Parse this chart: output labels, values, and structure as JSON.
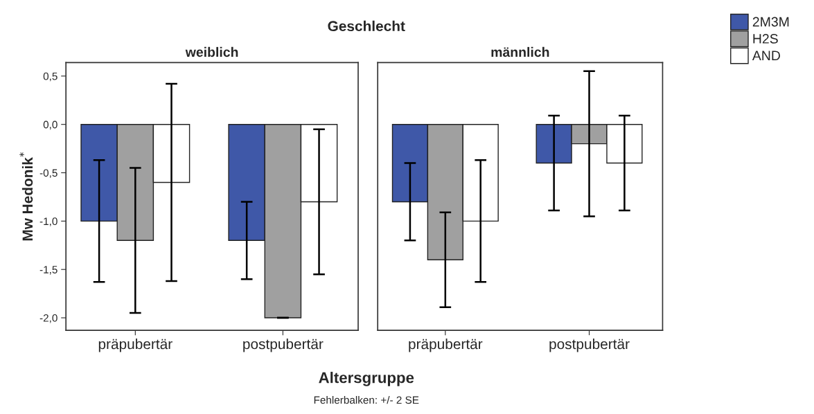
{
  "chart_data": [
    {
      "type": "bar",
      "title": "weiblich",
      "ylabel": "Mw Hedonik$^{*}$",
      "xlabel": "Altersgruppe",
      "annotations": [
        "Geschlecht"
      ],
      "categories": [
        "präpubertär",
        "postpubertär"
      ],
      "series": [
        {
          "name": "2M3M",
          "color": "#3f58a8",
          "values": [
            -1.0,
            -1.2
          ],
          "errors": [
            0.63,
            0.4
          ]
        },
        {
          "name": "H2S",
          "color": "#a0a0a0",
          "values": [
            -1.2,
            -2.0
          ],
          "errors": [
            0.75,
            0
          ]
        },
        {
          "name": "AND",
          "color": "#ffffff",
          "values": [
            -0.6,
            -0.8
          ],
          "errors": [
            1.02,
            0.75
          ]
        }
      ],
      "ylim": [
        -2.13,
        0.64
      ],
      "yticks": [
        {
          "value": -2.0,
          "label": "-2,0"
        },
        {
          "value": -1.5,
          "label": "-1,5"
        },
        {
          "value": -1.0,
          "label": "-1,0"
        },
        {
          "value": -0.5,
          "label": "-0,5"
        },
        {
          "value": 0.0,
          "label": "0,0"
        },
        {
          "value": 0.5,
          "label": "0,5"
        }
      ],
      "grid": false,
      "legend": "top right"
    },
    {
      "type": "bar",
      "title": "männlich",
      "annotations": [
        "Fehlerbalken: +/- 2 SE"
      ],
      "categories": [
        "präpubertär",
        "postpubertär"
      ],
      "series": [
        {
          "color": "#3f58a8",
          "values": [
            -0.8,
            -0.4
          ],
          "errors": [
            0.4,
            0.49
          ]
        },
        {
          "color": "#a0a0a0",
          "values": [
            -1.4,
            -0.2
          ],
          "errors": [
            0.49,
            0.75
          ]
        },
        {
          "color": "#ffffff",
          "values": [
            -1.0,
            -0.4
          ],
          "errors": [
            0.63,
            0.49
          ]
        }
      ],
      "ylim": [
        -2.13,
        0.64
      ],
      "tick_labels": "x",
      "grid": false
    }
  ]
}
